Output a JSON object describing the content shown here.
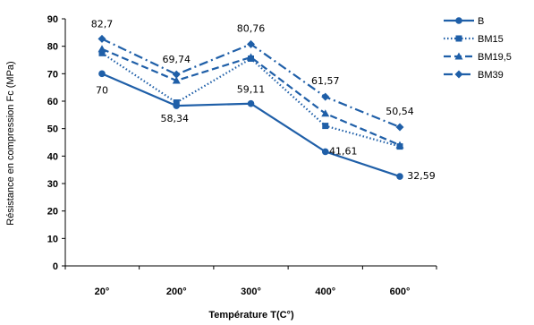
{
  "chart_data": {
    "type": "line",
    "xlabel": "Température T(C°)",
    "ylabel": "Résistance en compression Fc (MPa)",
    "categories": [
      "20°",
      "200°",
      "300°",
      "400°",
      "600°"
    ],
    "ylim": [
      0,
      90
    ],
    "yticks": [
      0,
      10,
      20,
      30,
      40,
      50,
      60,
      70,
      80,
      90
    ],
    "grid": false,
    "legend_position": "right",
    "series": [
      {
        "name": "B",
        "values": [
          70,
          58.34,
          59.11,
          41.61,
          32.59
        ],
        "style": "solid",
        "marker": "circle",
        "color": "#1f5fa8"
      },
      {
        "name": "BM15",
        "values": [
          77.5,
          59.5,
          75.5,
          51,
          43.5
        ],
        "style": "dotted",
        "marker": "square",
        "color": "#1f5fa8"
      },
      {
        "name": "BM19,5",
        "values": [
          79,
          67.5,
          76,
          55.5,
          44
        ],
        "style": "dashed",
        "marker": "triangle",
        "color": "#1f5fa8"
      },
      {
        "name": "BM39",
        "values": [
          82.7,
          69.74,
          80.76,
          61.57,
          50.54
        ],
        "style": "dashdot",
        "marker": "diamond",
        "color": "#1f5fa8"
      }
    ],
    "data_labels": [
      {
        "series": "B",
        "index": 0,
        "text": "70"
      },
      {
        "series": "B",
        "index": 1,
        "text": "58,34"
      },
      {
        "series": "B",
        "index": 2,
        "text": "59,11"
      },
      {
        "series": "B",
        "index": 3,
        "text": "41,61"
      },
      {
        "series": "B",
        "index": 4,
        "text": "32,59"
      },
      {
        "series": "BM39",
        "index": 0,
        "text": "82,7"
      },
      {
        "series": "BM39",
        "index": 1,
        "text": "69,74"
      },
      {
        "series": "BM39",
        "index": 2,
        "text": "80,76"
      },
      {
        "series": "BM39",
        "index": 3,
        "text": "61,57"
      },
      {
        "series": "BM39",
        "index": 4,
        "text": "50,54"
      }
    ]
  }
}
